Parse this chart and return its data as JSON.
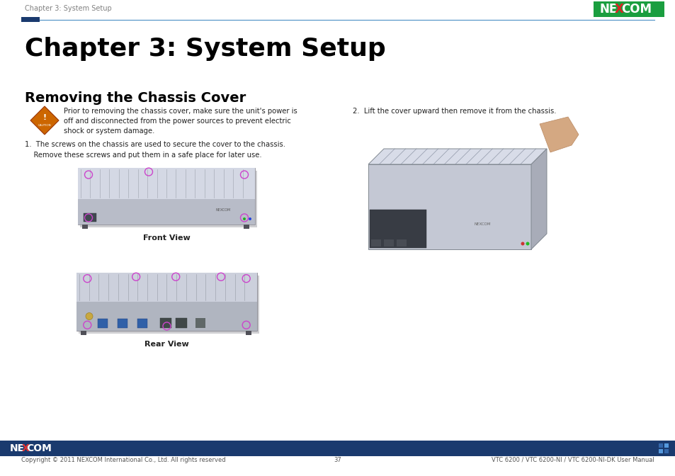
{
  "bg_color": "#ffffff",
  "header_text": "Chapter 3: System Setup",
  "header_text_color": "#808080",
  "header_text_size": 7,
  "divider_rect_color": "#1a3a6e",
  "divider_line_color": "#4a90c4",
  "chapter_title": "Chapter 3: System Setup",
  "chapter_title_size": 26,
  "chapter_title_color": "#000000",
  "section_title": "Removing the Chassis Cover",
  "section_title_size": 14,
  "section_title_color": "#000000",
  "caution_text": "Prior to removing the chassis cover, make sure the unit's power is\noff and disconnected from the power sources to prevent electric\nshock or system damage.",
  "caution_text_size": 7.2,
  "step1_text": "1.  The screws on the chassis are used to secure the cover to the chassis.\n    Remove these screws and put them in a safe place for later use.",
  "step1_text_size": 7.2,
  "step2_text": "2.  Lift the cover upward then remove it from the chassis.",
  "step2_text_size": 7.2,
  "front_view_label": "Front View",
  "rear_view_label": "Rear View",
  "footer_bar_color": "#1a3a6e",
  "footer_copyright": "Copyright © 2011 NEXCOM International Co., Ltd. All rights reserved",
  "footer_page": "37",
  "footer_right": "VTC 6200 / VTC 6200-NI / VTC 6200-NI-DK User Manual",
  "footer_text_size": 6,
  "footer_text_color": "#555555",
  "nexcom_logo_green": "#1a9e3f",
  "nexcom_logo_blue": "#1a5fa8",
  "caution_diamond_color": "#cc6600",
  "caution_diamond_edge": "#993300",
  "screw_color": "#cc44cc"
}
